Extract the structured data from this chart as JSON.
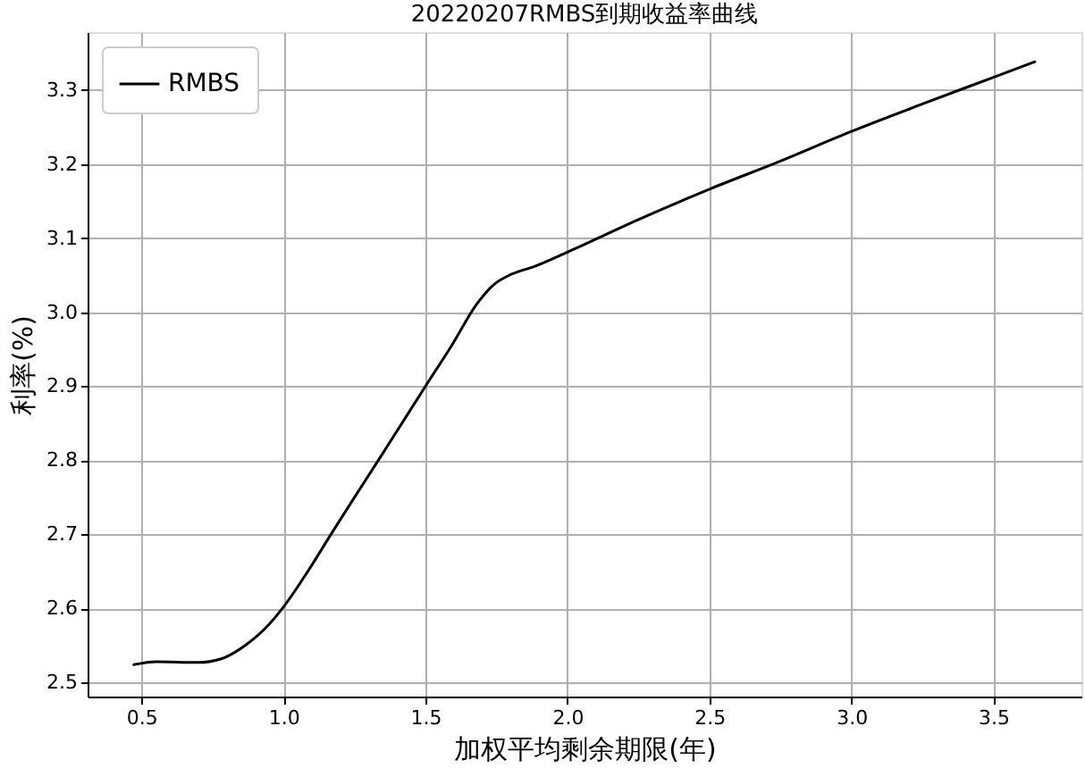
{
  "chart_data": {
    "type": "line",
    "title": "20220207RMBS到期收益率曲线",
    "xlabel": "加权平均剩余期限(年)",
    "ylabel": "利率(%)",
    "x": [
      0.473,
      0.552,
      0.698,
      0.781,
      0.865,
      0.948,
      1.0,
      1.094,
      1.167,
      1.25,
      1.334,
      1.417,
      1.5,
      1.594,
      1.677,
      1.74,
      1.802,
      1.886,
      2.0,
      2.25,
      2.5,
      2.75,
      3.0,
      3.25,
      3.5,
      3.646
    ],
    "series": [
      {
        "name": "RMBS",
        "color": "#000000",
        "values": [
          2.524,
          2.528,
          2.527,
          2.532,
          2.55,
          2.578,
          2.602,
          2.655,
          2.7,
          2.75,
          2.8,
          2.85,
          2.9,
          2.956,
          3.009,
          3.037,
          3.051,
          3.062,
          3.081,
          3.125,
          3.166,
          3.204,
          3.244,
          3.281,
          3.317,
          3.338
        ]
      }
    ],
    "xlim": [
      0.31,
      3.81
    ],
    "ylim": [
      2.481,
      3.378
    ],
    "xticks": [
      0.5,
      {
        "value": 1,
        "label": "1.0"
      },
      1.5,
      {
        "value": 2,
        "label": "2.0"
      },
      2.5,
      {
        "value": 3,
        "label": "3.0"
      },
      3.5
    ],
    "yticks": [
      2.5,
      2.6,
      2.7,
      2.8,
      2.9,
      {
        "value": 3,
        "label": "3.0"
      },
      3.1,
      3.2,
      3.3
    ],
    "grid": true,
    "legend": "top left",
    "marker": "none",
    "line_style": "solid"
  }
}
